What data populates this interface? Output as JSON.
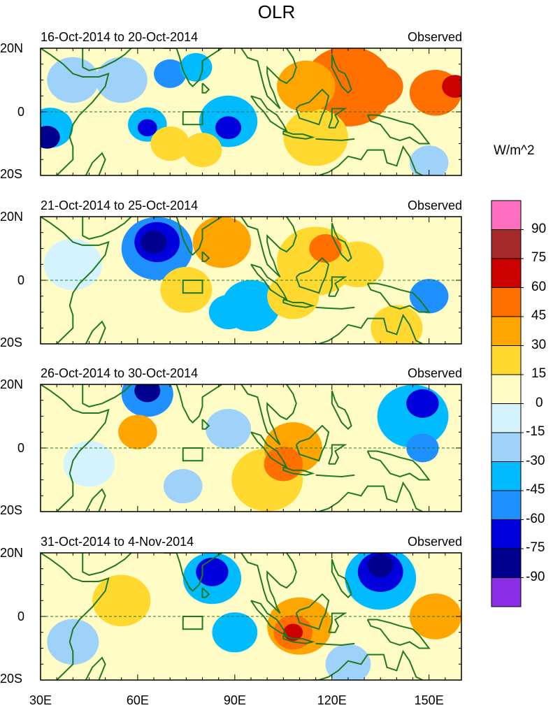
{
  "chart_data": {
    "type": "heatmap",
    "title": "OLR",
    "units": "W/m^2",
    "x_axis": {
      "ticks": [
        "30E",
        "60E",
        "90E",
        "120E",
        "150E"
      ],
      "range": [
        30,
        160
      ]
    },
    "y_axis": {
      "ticks": [
        "20N",
        "0",
        "20S"
      ],
      "range": [
        -20,
        20
      ]
    },
    "colorbar": {
      "levels": [
        "90",
        "75",
        "60",
        "45",
        "30",
        "15",
        "0",
        "-15",
        "-30",
        "-45",
        "-60",
        "-75",
        "-90"
      ],
      "colors": [
        "#ff6fc0",
        "#a52a2a",
        "#cd0000",
        "#ff7000",
        "#ffa500",
        "#ffd930",
        "#fffcc6",
        "#d4f3ff",
        "#9fd2fa",
        "#00bbff",
        "#1e90ff",
        "#0000dd",
        "#00008e",
        "#8b2ee8"
      ]
    },
    "panels": [
      {
        "title": "16-Oct-2014 to 20-Oct-2014",
        "tag": "Observed",
        "features": [
          {
            "lon": 40,
            "lat": 10,
            "v": -25,
            "r": 8
          },
          {
            "lon": 32,
            "lat": -8,
            "v": -80,
            "r": 4
          },
          {
            "lon": 33,
            "lat": -5,
            "v": -40,
            "r": 7
          },
          {
            "lon": 55,
            "lat": 10,
            "v": -30,
            "r": 8
          },
          {
            "lon": 70,
            "lat": 12,
            "v": -50,
            "r": 5
          },
          {
            "lon": 78,
            "lat": 14,
            "v": -35,
            "r": 5
          },
          {
            "lon": 63,
            "lat": -5,
            "v": -70,
            "r": 3
          },
          {
            "lon": 63,
            "lat": -4,
            "v": -35,
            "r": 6
          },
          {
            "lon": 88,
            "lat": -5,
            "v": -75,
            "r": 4
          },
          {
            "lon": 88,
            "lat": -3,
            "v": -45,
            "r": 9
          },
          {
            "lon": 70,
            "lat": -10,
            "v": 25,
            "r": 6
          },
          {
            "lon": 80,
            "lat": -12,
            "v": 20,
            "r": 6
          },
          {
            "lon": 125,
            "lat": 8,
            "v": 45,
            "r": 14
          },
          {
            "lon": 135,
            "lat": 8,
            "v": 55,
            "r": 7
          },
          {
            "lon": 158,
            "lat": 8,
            "v": 62,
            "r": 4
          },
          {
            "lon": 152,
            "lat": 6,
            "v": 45,
            "r": 8
          },
          {
            "lon": 112,
            "lat": 8,
            "v": 30,
            "r": 9
          },
          {
            "lon": 115,
            "lat": -8,
            "v": 15,
            "r": 10
          },
          {
            "lon": 150,
            "lat": -16,
            "v": -20,
            "r": 6
          }
        ]
      },
      {
        "title": "21-Oct-2014 to 25-Oct-2014",
        "tag": "Observed",
        "features": [
          {
            "lon": 65,
            "lat": 12,
            "v": -90,
            "r": 4
          },
          {
            "lon": 66,
            "lat": 12,
            "v": -75,
            "r": 7
          },
          {
            "lon": 66,
            "lat": 10,
            "v": -50,
            "r": 11
          },
          {
            "lon": 88,
            "lat": -10,
            "v": -45,
            "r": 6
          },
          {
            "lon": 95,
            "lat": -8,
            "v": -35,
            "r": 9
          },
          {
            "lon": 150,
            "lat": -5,
            "v": -50,
            "r": 6
          },
          {
            "lon": 86,
            "lat": 12,
            "v": 30,
            "r": 9
          },
          {
            "lon": 75,
            "lat": -3,
            "v": 25,
            "r": 8
          },
          {
            "lon": 118,
            "lat": 10,
            "v": 45,
            "r": 5
          },
          {
            "lon": 115,
            "lat": 6,
            "v": 25,
            "r": 12
          },
          {
            "lon": 128,
            "lat": 5,
            "v": 20,
            "r": 8
          },
          {
            "lon": 108,
            "lat": -5,
            "v": 20,
            "r": 8
          },
          {
            "lon": 40,
            "lat": 5,
            "v": -15,
            "r": 9
          },
          {
            "lon": 140,
            "lat": -15,
            "v": 15,
            "r": 8
          }
        ]
      },
      {
        "title": "26-Oct-2014 to 30-Oct-2014",
        "tag": "Observed",
        "features": [
          {
            "lon": 63,
            "lat": 18,
            "v": -80,
            "r": 4
          },
          {
            "lon": 63,
            "lat": 17,
            "v": -50,
            "r": 8
          },
          {
            "lon": 148,
            "lat": 14,
            "v": -65,
            "r": 5
          },
          {
            "lon": 145,
            "lat": 10,
            "v": -40,
            "r": 11
          },
          {
            "lon": 148,
            "lat": 0,
            "v": -55,
            "r": 5
          },
          {
            "lon": 105,
            "lat": -5,
            "v": 50,
            "r": 6
          },
          {
            "lon": 108,
            "lat": 0,
            "v": 35,
            "r": 9
          },
          {
            "lon": 100,
            "lat": -10,
            "v": 25,
            "r": 11
          },
          {
            "lon": 60,
            "lat": 5,
            "v": 30,
            "r": 6
          },
          {
            "lon": 88,
            "lat": 6,
            "v": -30,
            "r": 7
          },
          {
            "lon": 74,
            "lat": -12,
            "v": -25,
            "r": 6
          },
          {
            "lon": 45,
            "lat": -5,
            "v": -15,
            "r": 8
          }
        ]
      },
      {
        "title": "31-Oct-2014 to 4-Nov-2014",
        "tag": "Observed",
        "features": [
          {
            "lon": 135,
            "lat": 16,
            "v": -90,
            "r": 4
          },
          {
            "lon": 135,
            "lat": 14,
            "v": -70,
            "r": 7
          },
          {
            "lon": 135,
            "lat": 12,
            "v": -40,
            "r": 11
          },
          {
            "lon": 83,
            "lat": 14,
            "v": -70,
            "r": 5
          },
          {
            "lon": 83,
            "lat": 12,
            "v": -40,
            "r": 9
          },
          {
            "lon": 108,
            "lat": -5,
            "v": 70,
            "r": 3
          },
          {
            "lon": 108,
            "lat": -5,
            "v": 50,
            "r": 6
          },
          {
            "lon": 110,
            "lat": -3,
            "v": 30,
            "r": 10
          },
          {
            "lon": 55,
            "lat": 5,
            "v": 25,
            "r": 9
          },
          {
            "lon": 152,
            "lat": 0,
            "v": 35,
            "r": 8
          },
          {
            "lon": 90,
            "lat": -5,
            "v": -35,
            "r": 7
          },
          {
            "lon": 40,
            "lat": -8,
            "v": -20,
            "r": 8
          },
          {
            "lon": 125,
            "lat": -15,
            "v": -20,
            "r": 7
          }
        ]
      }
    ]
  }
}
